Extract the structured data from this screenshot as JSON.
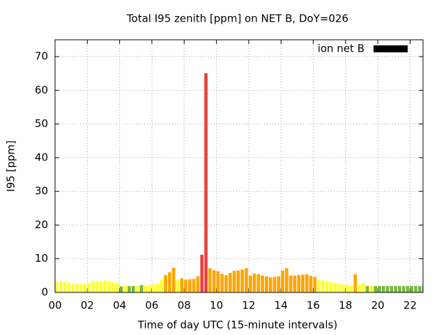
{
  "chart_data": {
    "type": "bar",
    "title": "Total I95 zenith [ppm] on NET B, DoY=026",
    "xlabel": "Time of day UTC (15-minute intervals)",
    "ylabel": "I95 [ppm]",
    "xlim": [
      0,
      22.8
    ],
    "ylim": [
      0,
      75
    ],
    "xticks": [
      {
        "value": 0,
        "label": "00"
      },
      {
        "value": 2,
        "label": "02"
      },
      {
        "value": 4,
        "label": "04"
      },
      {
        "value": 6,
        "label": "06"
      },
      {
        "value": 8,
        "label": "08"
      },
      10,
      12,
      14,
      16,
      18,
      20,
      22
    ],
    "yticks": [
      0,
      10,
      20,
      30,
      40,
      50,
      60,
      70
    ],
    "grid": true,
    "legend": "upper right",
    "x": [
      0,
      0.25,
      0.5,
      0.75,
      1,
      1.25,
      1.5,
      1.75,
      2,
      2.25,
      2.5,
      2.75,
      3,
      3.25,
      3.5,
      3.75,
      4,
      4.25,
      4.5,
      4.75,
      5,
      5.25,
      5.5,
      5.75,
      6,
      6.25,
      6.5,
      6.75,
      7,
      7.25,
      7.5,
      7.75,
      8,
      8.25,
      8.5,
      8.75,
      9,
      9.25,
      9.5,
      9.75,
      10,
      10.25,
      10.5,
      10.75,
      11,
      11.25,
      11.5,
      11.75,
      12,
      12.25,
      12.5,
      12.75,
      13,
      13.25,
      13.5,
      13.75,
      14,
      14.25,
      14.5,
      14.75,
      15,
      15.25,
      15.5,
      15.75,
      16,
      16.25,
      16.5,
      16.75,
      17,
      17.25,
      17.5,
      17.75,
      18,
      18.25,
      18.5,
      18.75,
      19,
      19.25,
      19.5,
      19.75,
      20,
      20.25,
      20.5,
      20.75,
      21,
      21.25,
      21.5,
      21.75,
      22,
      22.25,
      22.5,
      22.75
    ],
    "series": [
      {
        "name": "ion net B",
        "color": "#000000",
        "values": [
          3.2,
          3.3,
          3.1,
          3.0,
          2.6,
          2.5,
          2.5,
          2.6,
          2.6,
          3.4,
          3.4,
          3.3,
          3.6,
          3.4,
          3.0,
          2.6,
          1.8,
          2.2,
          1.9,
          1.9,
          2.0,
          2.2,
          2.1,
          2.2,
          2.3,
          2.6,
          3.7,
          5.2,
          6.0,
          7.3,
          3.6,
          4.2,
          3.8,
          3.9,
          4.0,
          4.8,
          11.2,
          65.1,
          7.2,
          6.6,
          6.3,
          5.5,
          5.1,
          5.8,
          6.4,
          6.5,
          6.8,
          7.2,
          5.0,
          5.6,
          5.4,
          5.0,
          4.8,
          4.5,
          4.6,
          4.8,
          6.5,
          7.2,
          5.0,
          5.0,
          5.2,
          5.3,
          5.4,
          4.9,
          4.6,
          3.8,
          3.6,
          3.4,
          3.0,
          2.8,
          2.6,
          2.4,
          2.2,
          2.0,
          5.4,
          2.4,
          2.8,
          1.9,
          2.0,
          1.9,
          1.9,
          1.9,
          1.9,
          1.9,
          1.9,
          1.9,
          1.9,
          1.9,
          1.9,
          1.9,
          1.9,
          1.9
        ],
        "colors": [
          "#ffff33",
          "#ffff33",
          "#ffff33",
          "#ffff33",
          "#ffff33",
          "#ffff33",
          "#ffff33",
          "#ffff33",
          "#ffff33",
          "#ffff33",
          "#ffff33",
          "#ffff33",
          "#ffff33",
          "#ffff33",
          "#ffff33",
          "#ffff33",
          "#77b83d",
          "#ffff33",
          "#77b83d",
          "#77b83d",
          "#ffff33",
          "#77b83d",
          "#ffff33",
          "#ffff33",
          "#ffff33",
          "#ffff33",
          "#ffff33",
          "#ffa500",
          "#ffa500",
          "#ffa500",
          "#ffff33",
          "#ffa500",
          "#ffa500",
          "#ffa500",
          "#ffa500",
          "#ffa500",
          "#e84040",
          "#e84040",
          "#ffa500",
          "#ffa500",
          "#ffa500",
          "#ffa500",
          "#ffa500",
          "#ffa500",
          "#ffa500",
          "#ffa500",
          "#ffa500",
          "#ffa500",
          "#ffa500",
          "#ffa500",
          "#ffa500",
          "#ffa500",
          "#ffa500",
          "#ffa500",
          "#ffa500",
          "#ffa500",
          "#ffa500",
          "#ffa500",
          "#ffa500",
          "#ffa500",
          "#ffa500",
          "#ffa500",
          "#ffa500",
          "#ffa500",
          "#ffa500",
          "#ffff33",
          "#ffff33",
          "#ffff33",
          "#ffff33",
          "#ffff33",
          "#ffff33",
          "#ffff33",
          "#ffff33",
          "#ffff33",
          "#ffa500",
          "#ffff33",
          "#ffff33",
          "#77b83d",
          "#ffff33",
          "#77b83d",
          "#77b83d",
          "#77b83d",
          "#77b83d",
          "#77b83d",
          "#77b83d",
          "#77b83d",
          "#77b83d",
          "#77b83d",
          "#77b83d",
          "#77b83d",
          "#77b83d",
          "#77b83d"
        ]
      }
    ]
  }
}
